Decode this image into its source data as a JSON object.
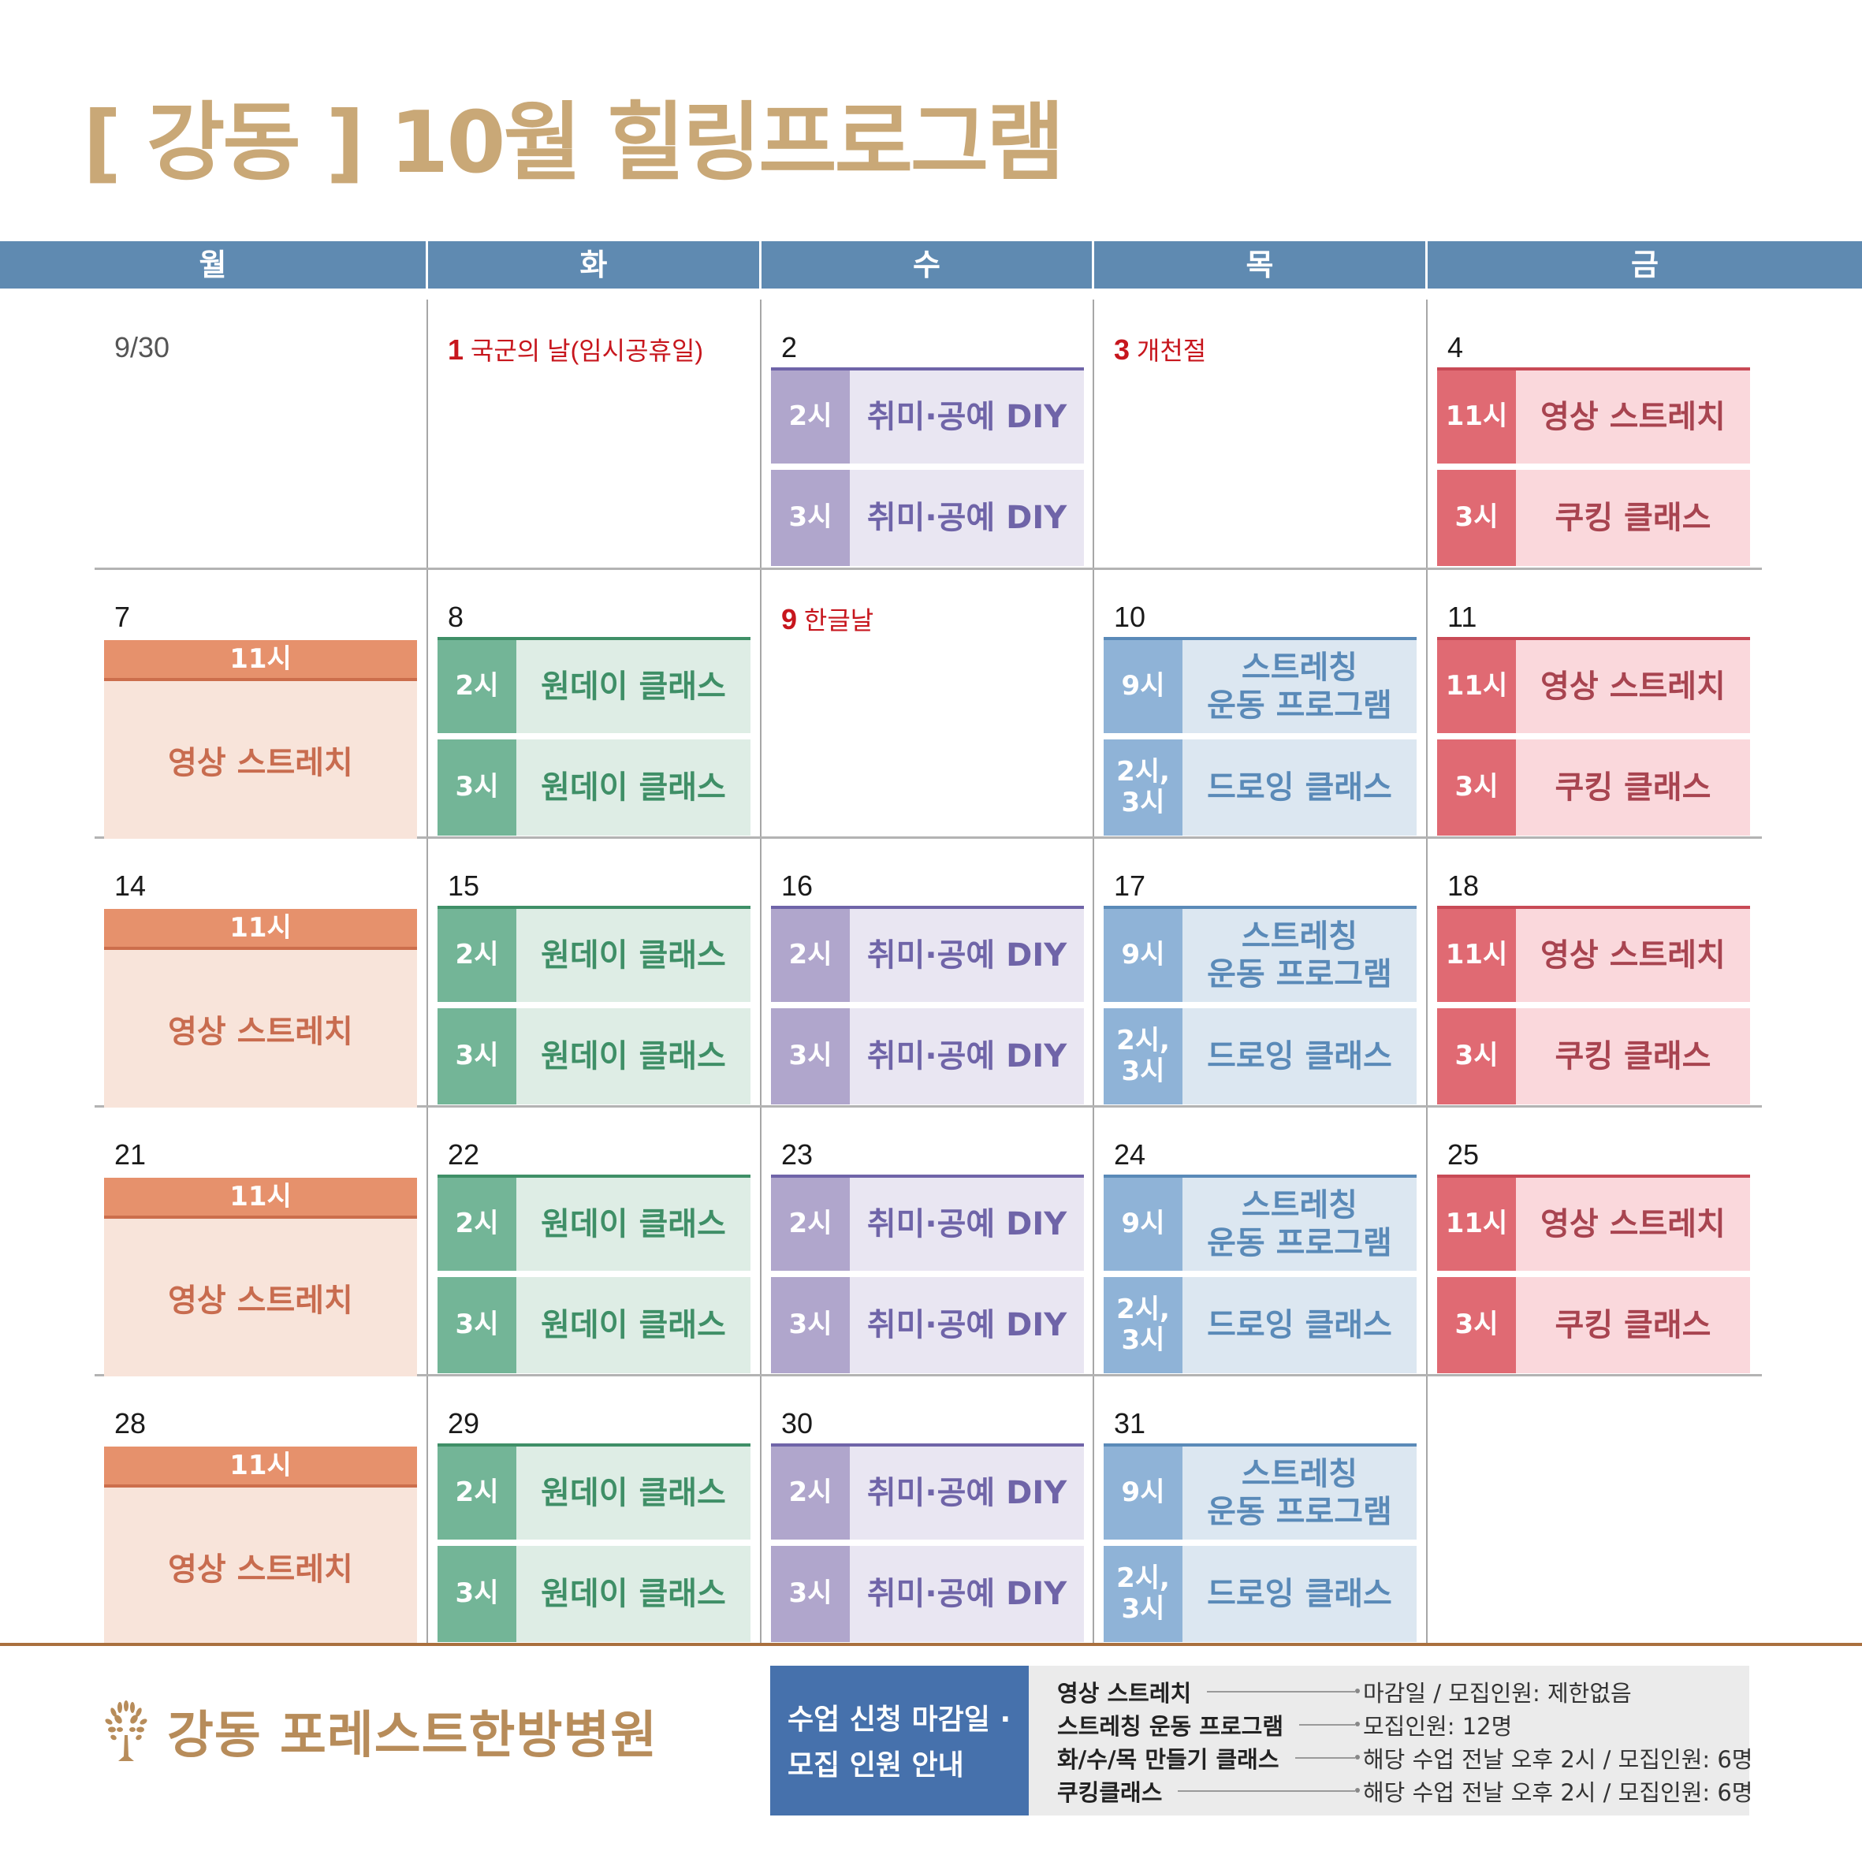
{
  "title": "[ 강동 ] 10월 힐링프로그램",
  "weekdays": [
    "월",
    "화",
    "수",
    "목",
    "금"
  ],
  "colors": {
    "title": "#c9a877",
    "header_bar": "#5f8ab1",
    "holiday": "#c7161d",
    "purple": "#6f64a8",
    "green": "#3f8f67",
    "blue": "#5a8ab8",
    "red": "#c84a56",
    "orange": "#e6916c",
    "notice_head": "#4671ac",
    "brand": "#b78c5a"
  },
  "weeks": [
    {
      "days": [
        {
          "date": "9/30",
          "gray": true,
          "events": []
        },
        {
          "date": "1",
          "holiday": "국군의 날(임시공휴일)",
          "events": []
        },
        {
          "date": "2",
          "events": [
            {
              "type": "purple",
              "time": "2시",
              "name": "취미·공예 DIY"
            },
            {
              "type": "purple",
              "time": "3시",
              "name": "취미·공예 DIY"
            }
          ]
        },
        {
          "date": "3",
          "holiday": "개천절",
          "events": []
        },
        {
          "date": "4",
          "events": [
            {
              "type": "red",
              "time": "11시",
              "name": "영상 스트레치"
            },
            {
              "type": "red",
              "time": "3시",
              "name": "쿠킹 클래스"
            }
          ]
        }
      ]
    },
    {
      "days": [
        {
          "date": "7",
          "orange": {
            "time": "11시",
            "name": "영상 스트레치"
          },
          "events": []
        },
        {
          "date": "8",
          "events": [
            {
              "type": "green",
              "time": "2시",
              "name": "원데이 클래스"
            },
            {
              "type": "green",
              "time": "3시",
              "name": "원데이 클래스"
            }
          ]
        },
        {
          "date": "9",
          "holiday": "한글날",
          "events": []
        },
        {
          "date": "10",
          "events": [
            {
              "type": "blue",
              "time": "9시",
              "name": "스트레칭\n운동 프로그램"
            },
            {
              "type": "blue",
              "time": "2시,\n3시",
              "name": "드로잉 클래스"
            }
          ]
        },
        {
          "date": "11",
          "events": [
            {
              "type": "red",
              "time": "11시",
              "name": "영상 스트레치"
            },
            {
              "type": "red",
              "time": "3시",
              "name": "쿠킹 클래스"
            }
          ]
        }
      ]
    },
    {
      "days": [
        {
          "date": "14",
          "orange": {
            "time": "11시",
            "name": "영상 스트레치"
          },
          "events": []
        },
        {
          "date": "15",
          "events": [
            {
              "type": "green",
              "time": "2시",
              "name": "원데이 클래스"
            },
            {
              "type": "green",
              "time": "3시",
              "name": "원데이 클래스"
            }
          ]
        },
        {
          "date": "16",
          "events": [
            {
              "type": "purple",
              "time": "2시",
              "name": "취미·공예 DIY"
            },
            {
              "type": "purple",
              "time": "3시",
              "name": "취미·공예 DIY"
            }
          ]
        },
        {
          "date": "17",
          "events": [
            {
              "type": "blue",
              "time": "9시",
              "name": "스트레칭\n운동 프로그램"
            },
            {
              "type": "blue",
              "time": "2시,\n3시",
              "name": "드로잉 클래스"
            }
          ]
        },
        {
          "date": "18",
          "events": [
            {
              "type": "red",
              "time": "11시",
              "name": "영상 스트레치"
            },
            {
              "type": "red",
              "time": "3시",
              "name": "쿠킹 클래스"
            }
          ]
        }
      ]
    },
    {
      "days": [
        {
          "date": "21",
          "orange": {
            "time": "11시",
            "name": "영상 스트레치"
          },
          "events": []
        },
        {
          "date": "22",
          "events": [
            {
              "type": "green",
              "time": "2시",
              "name": "원데이 클래스"
            },
            {
              "type": "green",
              "time": "3시",
              "name": "원데이 클래스"
            }
          ]
        },
        {
          "date": "23",
          "events": [
            {
              "type": "purple",
              "time": "2시",
              "name": "취미·공예 DIY"
            },
            {
              "type": "purple",
              "time": "3시",
              "name": "취미·공예 DIY"
            }
          ]
        },
        {
          "date": "24",
          "events": [
            {
              "type": "blue",
              "time": "9시",
              "name": "스트레칭\n운동 프로그램"
            },
            {
              "type": "blue",
              "time": "2시,\n3시",
              "name": "드로잉 클래스"
            }
          ]
        },
        {
          "date": "25",
          "events": [
            {
              "type": "red",
              "time": "11시",
              "name": "영상 스트레치"
            },
            {
              "type": "red",
              "time": "3시",
              "name": "쿠킹 클래스"
            }
          ]
        }
      ]
    },
    {
      "days": [
        {
          "date": "28",
          "orange": {
            "time": "11시",
            "name": "영상 스트레치"
          },
          "events": []
        },
        {
          "date": "29",
          "events": [
            {
              "type": "green",
              "time": "2시",
              "name": "원데이 클래스"
            },
            {
              "type": "green",
              "time": "3시",
              "name": "원데이 클래스"
            }
          ]
        },
        {
          "date": "30",
          "events": [
            {
              "type": "purple",
              "time": "2시",
              "name": "취미·공예 DIY"
            },
            {
              "type": "purple",
              "time": "3시",
              "name": "취미·공예 DIY"
            }
          ]
        },
        {
          "date": "31",
          "events": [
            {
              "type": "blue",
              "time": "9시",
              "name": "스트레칭\n운동 프로그램"
            },
            {
              "type": "blue",
              "time": "2시,\n3시",
              "name": "드로잉 클래스"
            }
          ]
        },
        {
          "date": "",
          "events": []
        }
      ]
    }
  ],
  "footer": {
    "brand_name": "강동 포레스트한방병원",
    "brand_icon": "tree-icon",
    "notice_title_line1": "수업 신청 마감일 ·",
    "notice_title_line2": "모집 인원 안내",
    "notice_rows": [
      {
        "label": "영상 스트레치",
        "value": "마감일 / 모집인원: 제한없음"
      },
      {
        "label": "스트레칭 운동 프로그램",
        "value": "모집인원: 12명"
      },
      {
        "label": "화/수/목 만들기 클래스",
        "value": "해당 수업 전날 오후 2시 / 모집인원: 6명"
      },
      {
        "label": "쿠킹클래스",
        "value": "해당 수업 전날 오후 2시 / 모집인원: 6명"
      }
    ]
  }
}
